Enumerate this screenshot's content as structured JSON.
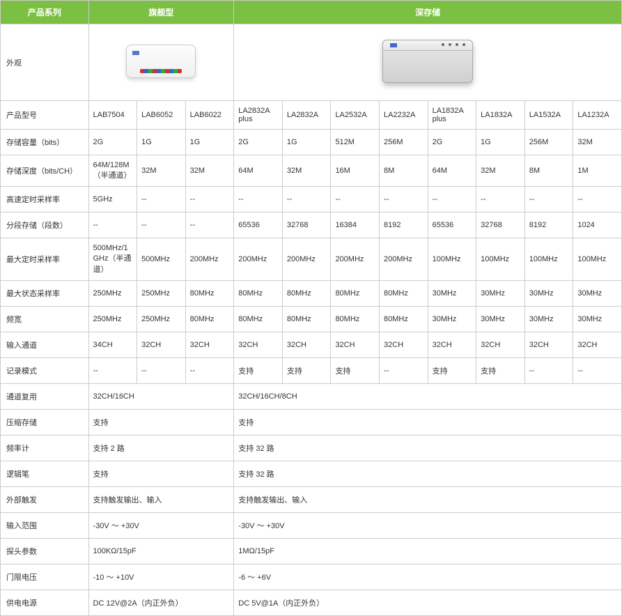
{
  "colors": {
    "header_bg": "#7bc043",
    "header_text": "#ffffff",
    "border": "#cccccc",
    "text": "#333333"
  },
  "header": {
    "col1": "产品系列",
    "col2": "旗舰型",
    "col3": "深存储"
  },
  "labels": {
    "appearance": "外观",
    "model": "产品型号",
    "storage_capacity": "存储容量（bits）",
    "storage_depth": "存储深度（bits/CH）",
    "hs_sample": "高速定时采样率",
    "seg_storage": "分段存储（段数）",
    "max_timing": "最大定时采样率",
    "max_state": "最大状态采样率",
    "bandwidth": "频宽",
    "input_ch": "输入通道",
    "record_mode": "记录模式",
    "ch_mux": "通道复用",
    "compress": "压缩存储",
    "freq_counter": "频率计",
    "logic_pen": "逻辑笔",
    "ext_trig": "外部触发",
    "in_range": "输入范围",
    "probe": "探头参数",
    "threshold": "门限电压",
    "power": "供电电源"
  },
  "models": [
    "LAB7504",
    "LAB6052",
    "LAB6022",
    "LA2832A plus",
    "LA2832A",
    "LA2532A",
    "LA2232A",
    "LA1832A plus",
    "LA1832A",
    "LA1532A",
    "LA1232A"
  ],
  "storage_capacity": [
    "2G",
    "1G",
    "1G",
    "2G",
    "1G",
    "512M",
    "256M",
    "2G",
    "1G",
    "256M",
    "32M"
  ],
  "storage_depth": [
    "64M/128M（半通道）",
    "32M",
    "32M",
    "64M",
    "32M",
    "16M",
    "8M",
    "64M",
    "32M",
    "8M",
    "1M"
  ],
  "hs_sample": [
    "5GHz",
    "--",
    "--",
    "--",
    "--",
    "--",
    "--",
    "--",
    "--",
    "--",
    "--"
  ],
  "seg_storage": [
    "--",
    "--",
    "--",
    "65536",
    "32768",
    "16384",
    "8192",
    "65536",
    "32768",
    "8192",
    "1024"
  ],
  "max_timing": [
    "500MHz/1GHz（半通道）",
    "500MHz",
    "200MHz",
    "200MHz",
    "200MHz",
    "200MHz",
    "200MHz",
    "100MHz",
    "100MHz",
    "100MHz",
    "100MHz"
  ],
  "max_state": [
    "250MHz",
    "250MHz",
    "80MHz",
    "80MHz",
    "80MHz",
    "80MHz",
    "80MHz",
    "30MHz",
    "30MHz",
    "30MHz",
    "30MHz"
  ],
  "bandwidth": [
    "250MHz",
    "250MHz",
    "80MHz",
    "80MHz",
    "80MHz",
    "80MHz",
    "80MHz",
    "30MHz",
    "30MHz",
    "30MHz",
    "30MHz"
  ],
  "input_ch": [
    "34CH",
    "32CH",
    "32CH",
    "32CH",
    "32CH",
    "32CH",
    "32CH",
    "32CH",
    "32CH",
    "32CH",
    "32CH"
  ],
  "record_mode": [
    "--",
    "--",
    "--",
    "支持",
    "支持",
    "支持",
    "--",
    "支持",
    "支持",
    "--",
    "--"
  ],
  "ch_mux": {
    "left": "32CH/16CH",
    "right": "32CH/16CH/8CH"
  },
  "compress": {
    "left": "支持",
    "right": "支持"
  },
  "freq_counter": {
    "left": "支持 2 路",
    "right": "支持 32 路"
  },
  "logic_pen": {
    "left": "支持",
    "right": "支持 32 路"
  },
  "ext_trig": {
    "left": "支持触发输出、输入",
    "right": "支持触发输出、输入"
  },
  "in_range": {
    "left": "-30V ～ +30V",
    "right": "-30V ～ +30V"
  },
  "probe": {
    "left": "100KΩ/15pF",
    "right": "1MΩ/15pF"
  },
  "threshold": {
    "left": "-10 ～ +10V",
    "right": "-6 ～ +6V"
  },
  "power": {
    "left": "DC 12V@2A（内正外负）",
    "right": "DC 5V@1A（内正外负）"
  }
}
